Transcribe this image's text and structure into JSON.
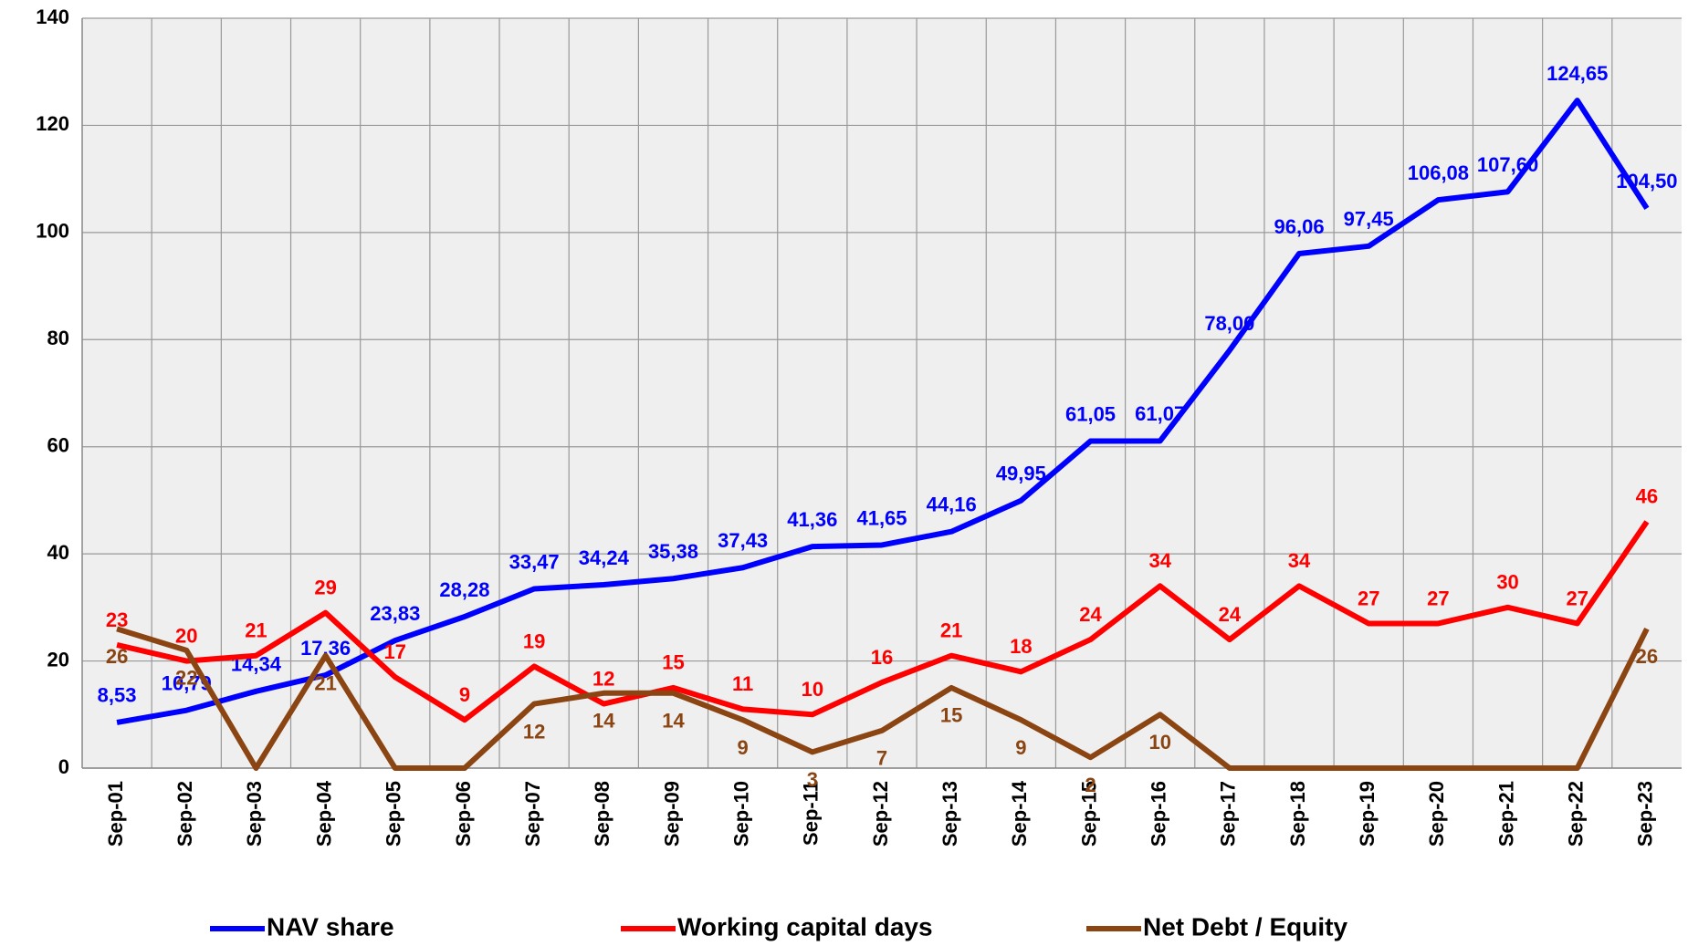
{
  "chart_data": {
    "type": "line",
    "categories": [
      "Sep-01",
      "Sep-02",
      "Sep-03",
      "Sep-04",
      "Sep-05",
      "Sep-06",
      "Sep-07",
      "Sep-08",
      "Sep-09",
      "Sep-10",
      "Sep-11",
      "Sep-12",
      "Sep-13",
      "Sep-14",
      "Sep-15",
      "Sep-16",
      "Sep-17",
      "Sep-18",
      "Sep-19",
      "Sep-20",
      "Sep-21",
      "Sep-22",
      "Sep-23"
    ],
    "series": [
      {
        "name": "NAV share",
        "color": "#0000ff",
        "values": [
          8.53,
          10.79,
          14.34,
          17.36,
          23.83,
          28.28,
          33.47,
          34.24,
          35.38,
          37.43,
          41.36,
          41.65,
          44.16,
          49.95,
          61.05,
          61.07,
          78.0,
          96.06,
          97.45,
          106.08,
          107.6,
          124.65,
          104.5
        ],
        "value_labels": [
          "8,53",
          "10,79",
          "14,34",
          "17,36",
          "23,83",
          "28,28",
          "33,47",
          "34,24",
          "35,38",
          "37,43",
          "41,36",
          "41,65",
          "44,16",
          "49,95",
          "61,05",
          "61,07",
          "78,00",
          "96,06",
          "97,45",
          "106,08",
          "107,60",
          "124,65",
          "104,50"
        ]
      },
      {
        "name": "Working capital days",
        "color": "#ff0000",
        "values": [
          23,
          20,
          21,
          29,
          17,
          9,
          19,
          12,
          15,
          11,
          10,
          16,
          21,
          18,
          24,
          34,
          24,
          34,
          27,
          27,
          30,
          27,
          46
        ],
        "value_labels": [
          "23",
          "20",
          "21",
          "29",
          "17",
          "9",
          "19",
          "12",
          "15",
          "11",
          "10",
          "16",
          "21",
          "18",
          "24",
          "34",
          "24",
          "34",
          "27",
          "27",
          "30",
          "27",
          "46"
        ]
      },
      {
        "name": "Net Debt / Equity",
        "color": "#8b4513",
        "values": [
          26,
          22,
          0,
          21,
          0,
          0,
          12,
          14,
          14,
          9,
          3,
          7,
          15,
          9,
          2,
          10,
          0,
          0,
          0,
          0,
          0,
          0,
          26
        ],
        "value_labels": [
          "26",
          "22",
          null,
          "21",
          null,
          null,
          "12",
          "14",
          "14",
          "9",
          "3",
          "7",
          "15",
          "9",
          "2",
          "10",
          null,
          null,
          null,
          null,
          null,
          null,
          "26"
        ]
      }
    ],
    "ylim": [
      0,
      140
    ],
    "yticks": [
      0,
      20,
      40,
      60,
      80,
      100,
      120,
      140
    ],
    "grid": true,
    "legend": "bottom"
  }
}
